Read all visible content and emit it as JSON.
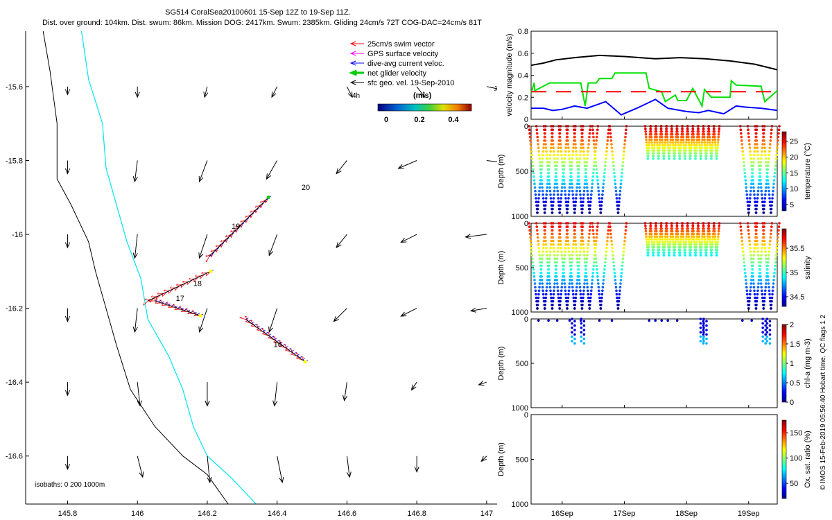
{
  "header": {
    "title_line1": "SG514 CoralSea20100601 15-Sep 12Z to 19-Sep 11Z.",
    "title_line2": "Dist. over ground: 104km. Dist. swum: 86km. Mission DOG: 2417km. Swum: 2385km. Gliding 24cm/s 72T COG-DAC=24cm/s 81T"
  },
  "map": {
    "legend": [
      {
        "label": "25cm/s swim vector",
        "color": "#ff0000",
        "style": "arrow"
      },
      {
        "label": "GPS surface velocity",
        "color": "#ff00ff",
        "style": "arrow"
      },
      {
        "label": "dive-avg current veloc.",
        "color": "#0000ff",
        "style": "arrow"
      },
      {
        "label": "net glider velocity",
        "color": "#00cc00",
        "style": "thick-arrow"
      },
      {
        "label": "sfc geo. vel. 19-Sep-2010",
        "color": "#000000",
        "style": "arrow"
      }
    ],
    "colorbar_title": "(m/s)",
    "colorbar_ticks": [
      "0",
      "0.2",
      "0.4"
    ],
    "time_label": "4h",
    "isobath_label": "isobaths: 0   200  1000m",
    "day_labels": [
      {
        "text": "16",
        "lon": 146.39,
        "lat": -16.305
      },
      {
        "text": "17",
        "lon": 146.11,
        "lat": -16.18
      },
      {
        "text": "18",
        "lon": 146.16,
        "lat": -16.14
      },
      {
        "text": "19",
        "lon": 146.27,
        "lat": -15.985
      },
      {
        "text": "20",
        "lon": 146.47,
        "lat": -15.88
      }
    ]
  },
  "chart_data": [
    {
      "type": "line",
      "name": "glider-track-map",
      "xlim": [
        145.68,
        147.03
      ],
      "ylim": [
        -16.73,
        -15.45
      ],
      "xticks": [
        "145.8",
        "146",
        "146.2",
        "146.4",
        "146.6",
        "146.8",
        "147"
      ],
      "yticks": [
        "-15.6",
        "-15.8",
        "-16",
        "-16.2",
        "-16.4",
        "-16.6"
      ],
      "grid_lon": [
        145.8,
        146.0,
        146.2,
        146.4,
        146.6,
        146.8,
        147.0
      ],
      "grid_lat": [
        -15.6,
        -15.8,
        -16.0,
        -16.2,
        -16.4,
        -16.6
      ],
      "sfc_geo_vel_u": [
        [
          0.0,
          0.0,
          0.01,
          0.02,
          -0.02,
          -0.03,
          -0.05
        ],
        [
          0.0,
          0.01,
          0.03,
          0.04,
          0.04,
          0.07,
          -0.08
        ],
        [
          0.0,
          0.01,
          0.03,
          0.03,
          0.04,
          0.06,
          0.08
        ],
        [
          0.0,
          0.01,
          0.03,
          0.03,
          0.05,
          0.06,
          0.06
        ],
        [
          0.0,
          -0.01,
          0.0,
          0.01,
          0.01,
          0.02,
          0.03
        ],
        [
          0.0,
          -0.02,
          -0.01,
          -0.02,
          -0.01,
          0.0,
          0.02
        ],
        [
          -0.01,
          -0.03,
          -0.05,
          -0.05,
          -0.03,
          -0.02,
          0.0
        ]
      ],
      "sfc_geo_vel_v": [
        [
          0.03,
          0.04,
          0.04,
          0.04,
          0.04,
          0.04,
          0.01
        ],
        [
          0.05,
          0.08,
          0.08,
          0.07,
          0.05,
          0.03,
          0.01
        ],
        [
          0.05,
          0.09,
          0.09,
          0.08,
          0.05,
          0.03,
          0.01
        ],
        [
          0.05,
          0.09,
          0.09,
          0.09,
          0.05,
          0.03,
          0.01
        ],
        [
          0.05,
          0.09,
          0.09,
          0.09,
          0.07,
          0.03,
          0.01
        ],
        [
          0.05,
          0.08,
          0.1,
          0.1,
          0.08,
          0.06,
          0.02
        ],
        [
          0.01,
          0.03,
          0.05,
          0.06,
          0.06,
          0.06,
          0.01
        ]
      ],
      "isobath_0": [
        [
          145.73,
          -15.45
        ],
        [
          145.75,
          -15.56
        ],
        [
          145.77,
          -15.7
        ],
        [
          145.77,
          -15.85
        ],
        [
          145.81,
          -15.92
        ],
        [
          145.86,
          -16.02
        ],
        [
          145.88,
          -16.1
        ],
        [
          145.91,
          -16.2
        ],
        [
          145.94,
          -16.3
        ],
        [
          145.98,
          -16.42
        ],
        [
          146.05,
          -16.52
        ],
        [
          146.13,
          -16.6
        ],
        [
          146.2,
          -16.65
        ],
        [
          146.26,
          -16.73
        ]
      ],
      "isobath_200": [
        [
          145.84,
          -15.45
        ],
        [
          145.86,
          -15.58
        ],
        [
          145.9,
          -15.7
        ],
        [
          145.91,
          -15.82
        ],
        [
          145.94,
          -15.92
        ],
        [
          145.97,
          -16.02
        ],
        [
          146.01,
          -16.12
        ],
        [
          146.03,
          -16.23
        ],
        [
          146.09,
          -16.33
        ],
        [
          146.13,
          -16.42
        ],
        [
          146.16,
          -16.52
        ],
        [
          146.2,
          -16.6
        ],
        [
          146.27,
          -16.66
        ],
        [
          146.34,
          -16.73
        ]
      ],
      "track_segments": [
        {
          "from": [
            146.31,
            -16.23
          ],
          "to": [
            146.48,
            -16.345
          ]
        },
        {
          "from": [
            146.05,
            -16.18
          ],
          "to": [
            146.18,
            -16.22
          ]
        },
        {
          "from": [
            146.03,
            -16.18
          ],
          "to": [
            146.21,
            -16.1
          ]
        },
        {
          "from": [
            146.205,
            -16.06
          ],
          "to": [
            146.375,
            -15.9
          ]
        }
      ]
    },
    {
      "type": "line",
      "name": "velocity-magnitude",
      "ylabel": "velocity magnitude (m/s)",
      "ylim": [
        0,
        0.8
      ],
      "yticks": [
        "0",
        "0.2",
        "0.4",
        "0.6",
        "0.8"
      ],
      "x_range_days": [
        15.5,
        19.46
      ],
      "series": [
        {
          "name": "black",
          "color": "#000000",
          "x": [
            15.5,
            15.7,
            15.9,
            16.2,
            16.6,
            17.0,
            17.5,
            17.9,
            18.3,
            18.7,
            19.1,
            19.46
          ],
          "y": [
            0.49,
            0.51,
            0.54,
            0.56,
            0.58,
            0.57,
            0.55,
            0.56,
            0.55,
            0.53,
            0.5,
            0.45
          ]
        },
        {
          "name": "green",
          "color": "#00e000",
          "x": [
            15.5,
            15.55,
            15.56,
            15.8,
            15.85,
            16.3,
            16.37,
            16.42,
            16.55,
            16.6,
            16.8,
            16.85,
            17.35,
            17.4,
            17.6,
            17.66,
            17.82,
            17.86,
            18.0,
            18.1,
            18.25,
            18.29,
            18.4,
            18.7,
            18.72,
            18.8,
            19.2,
            19.26,
            19.46
          ],
          "y": [
            0.24,
            0.33,
            0.26,
            0.33,
            0.33,
            0.33,
            0.12,
            0.33,
            0.33,
            0.37,
            0.37,
            0.42,
            0.42,
            0.28,
            0.25,
            0.16,
            0.22,
            0.17,
            0.17,
            0.28,
            0.12,
            0.27,
            0.2,
            0.2,
            0.35,
            0.31,
            0.3,
            0.16,
            0.26
          ]
        },
        {
          "name": "red-dashed",
          "color": "#ff0000",
          "x": [
            15.5,
            19.46
          ],
          "y": [
            0.25,
            0.25
          ]
        },
        {
          "name": "blue",
          "color": "#0000ff",
          "x": [
            15.5,
            15.7,
            15.85,
            16.0,
            16.2,
            16.4,
            16.7,
            16.95,
            17.2,
            17.5,
            17.7,
            18.0,
            18.2,
            18.35,
            18.6,
            18.8,
            18.95,
            19.2,
            19.46
          ],
          "y": [
            0.1,
            0.1,
            0.08,
            0.09,
            0.12,
            0.1,
            0.16,
            0.04,
            0.1,
            0.18,
            0.1,
            0.07,
            0.06,
            0.08,
            0.05,
            0.12,
            0.11,
            0.1,
            0.08
          ]
        }
      ]
    },
    {
      "type": "scatter",
      "name": "temperature-section",
      "ylabel": "Depth (m)",
      "ylim": [
        1000,
        0
      ],
      "yticks": [
        "0",
        "500",
        "1000"
      ],
      "colorbar_label": "temperature (°C)",
      "colorbar_ticks": [
        "5",
        "10",
        "15",
        "20",
        "25"
      ],
      "colorbar_range": [
        3,
        28
      ],
      "profile_max_depth_m": [
        980,
        980,
        980,
        980,
        980,
        980,
        980,
        980,
        980,
        980,
        980,
        980,
        380,
        380,
        380,
        380,
        380,
        380,
        380,
        380,
        380,
        380,
        380,
        380,
        980,
        980,
        980,
        980,
        980,
        980
      ]
    },
    {
      "type": "scatter",
      "name": "salinity-section",
      "ylabel": "Depth (m)",
      "ylim": [
        1000,
        0
      ],
      "yticks": [
        "0",
        "500",
        "1000"
      ],
      "colorbar_label": "salinity",
      "colorbar_ticks": [
        "34.5",
        "35",
        "35.5"
      ],
      "colorbar_range": [
        34.3,
        35.9
      ]
    },
    {
      "type": "scatter",
      "name": "chlorophyll-section",
      "ylabel": "Depth (m)",
      "ylim": [
        1000,
        0
      ],
      "yticks": [
        "0",
        "500",
        "1000"
      ],
      "colorbar_label": "chl-a (mg m-3)",
      "colorbar_ticks": [
        "0",
        "0.5",
        "1",
        "1.5",
        "2"
      ],
      "colorbar_range": [
        0,
        2
      ]
    },
    {
      "type": "scatter",
      "name": "oxygen-section",
      "ylabel": "Depth (m)",
      "ylim": [
        1000,
        0
      ],
      "yticks": [
        "0",
        "500",
        "1000"
      ],
      "xticks": [
        "16Sep",
        "17Sep",
        "18Sep",
        "19Sep"
      ],
      "colorbar_label": "Ox. sat. ratio (%)",
      "colorbar_ticks": [
        "50",
        "100",
        "150"
      ],
      "colorbar_range": [
        20,
        175
      ]
    }
  ],
  "footer": {
    "credit": "© IMOS 15-Feb-2019 05:56:40 Hobart time. QC flags 1  2"
  }
}
